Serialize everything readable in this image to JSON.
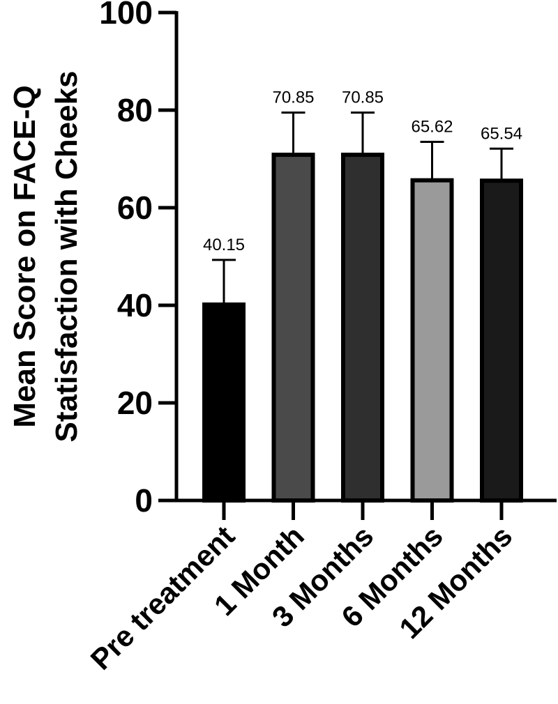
{
  "chart_data": {
    "type": "bar",
    "title": "",
    "ylabel_lines": [
      "Mean Score on FACE-Q",
      "Statisfaction with Cheeks"
    ],
    "xlabel": "",
    "categories": [
      "Pre treatment",
      "1 Month",
      "3 Months",
      "6 Months",
      "12 Months"
    ],
    "values": [
      40.15,
      70.85,
      70.85,
      65.62,
      65.54
    ],
    "error_upper": [
      49.3,
      79.5,
      79.5,
      73.5,
      72.1
    ],
    "data_labels": [
      "40.15",
      "70.85",
      "70.85",
      "65.62",
      "65.54"
    ],
    "bar_colors": [
      "#000000",
      "#4a4a4a",
      "#2f2f2f",
      "#9a9a9a",
      "#1a1a1a"
    ],
    "ylim": [
      0,
      100
    ],
    "yticks": [
      0,
      20,
      40,
      60,
      80,
      100
    ],
    "grid": false,
    "legend": "none"
  }
}
